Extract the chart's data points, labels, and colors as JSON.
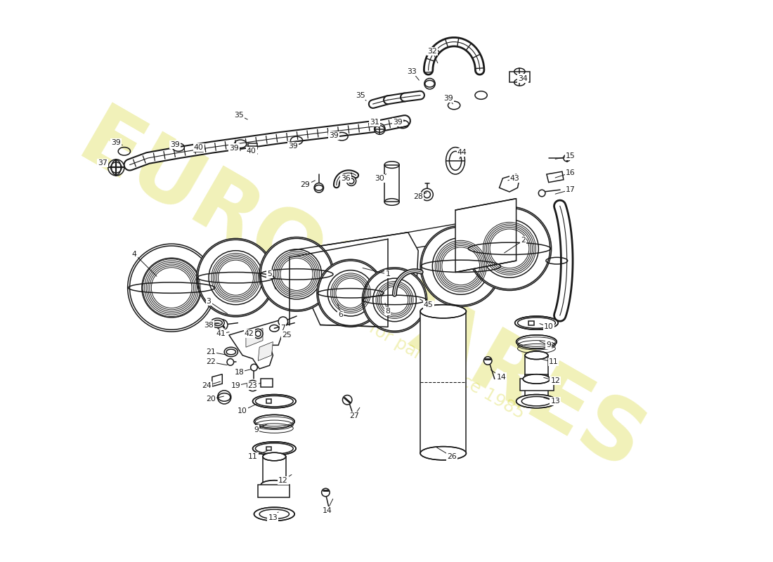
{
  "bg_color": "#ffffff",
  "dc": "#1a1a1a",
  "lw": 1.1,
  "watermark_text1": "EUROSPARES",
  "watermark_text2": "a passion for parts since 1985",
  "wc": "#cccc00",
  "wa": 0.28,
  "label_fs": 7.8,
  "annotations": [
    [
      "1",
      530,
      390,
      490,
      380
    ],
    [
      "2",
      730,
      340,
      700,
      360
    ],
    [
      "3",
      265,
      430,
      295,
      450
    ],
    [
      "4",
      155,
      360,
      190,
      395
    ],
    [
      "5",
      355,
      390,
      365,
      415
    ],
    [
      "6",
      460,
      450,
      455,
      430
    ],
    [
      "7",
      375,
      470,
      385,
      460
    ],
    [
      "8",
      530,
      445,
      525,
      430
    ],
    [
      "9",
      335,
      620,
      355,
      610
    ],
    [
      "10",
      315,
      592,
      340,
      580
    ],
    [
      "11",
      330,
      660,
      355,
      650
    ],
    [
      "12",
      375,
      695,
      390,
      685
    ],
    [
      "13",
      360,
      750,
      370,
      740
    ],
    [
      "14",
      440,
      740,
      450,
      720
    ],
    [
      "15",
      800,
      215,
      775,
      220
    ],
    [
      "16",
      800,
      240,
      775,
      248
    ],
    [
      "17",
      800,
      265,
      775,
      272
    ],
    [
      "18",
      310,
      535,
      330,
      530
    ],
    [
      "19",
      305,
      555,
      328,
      550
    ],
    [
      "20",
      268,
      575,
      290,
      570
    ],
    [
      "21",
      268,
      505,
      295,
      510
    ],
    [
      "22",
      268,
      520,
      295,
      525
    ],
    [
      "23",
      330,
      555,
      345,
      550
    ],
    [
      "24",
      262,
      555,
      285,
      548
    ],
    [
      "25",
      380,
      480,
      390,
      476
    ],
    [
      "26",
      625,
      660,
      600,
      645
    ],
    [
      "27",
      480,
      600,
      490,
      585
    ],
    [
      "28",
      575,
      275,
      590,
      268
    ],
    [
      "29",
      408,
      258,
      425,
      250
    ],
    [
      "30",
      518,
      248,
      530,
      240
    ],
    [
      "31",
      510,
      165,
      518,
      175
    ],
    [
      "32",
      596,
      60,
      605,
      80
    ],
    [
      "33",
      566,
      90,
      578,
      105
    ],
    [
      "34",
      730,
      100,
      720,
      105
    ],
    [
      "35",
      310,
      155,
      325,
      162
    ],
    [
      "35",
      490,
      125,
      500,
      135
    ],
    [
      "36",
      468,
      248,
      478,
      252
    ],
    [
      "37",
      108,
      225,
      120,
      230
    ],
    [
      "38",
      265,
      465,
      285,
      462
    ],
    [
      "39",
      128,
      195,
      140,
      200
    ],
    [
      "39",
      215,
      198,
      225,
      203
    ],
    [
      "39",
      302,
      203,
      315,
      208
    ],
    [
      "39",
      390,
      200,
      400,
      205
    ],
    [
      "39",
      450,
      185,
      460,
      192
    ],
    [
      "39",
      545,
      165,
      555,
      172
    ],
    [
      "39",
      620,
      130,
      628,
      140
    ],
    [
      "40",
      250,
      202,
      263,
      206
    ],
    [
      "40",
      328,
      208,
      340,
      213
    ],
    [
      "41",
      283,
      478,
      298,
      475
    ],
    [
      "42",
      325,
      478,
      340,
      473
    ],
    [
      "43",
      718,
      248,
      705,
      252
    ],
    [
      "44",
      640,
      210,
      635,
      222
    ],
    [
      "45",
      590,
      435,
      575,
      425
    ],
    [
      "9",
      768,
      495,
      752,
      488
    ],
    [
      "10",
      768,
      468,
      752,
      462
    ],
    [
      "11",
      775,
      520,
      755,
      515
    ],
    [
      "12",
      778,
      548,
      758,
      542
    ],
    [
      "13",
      778,
      578,
      758,
      572
    ],
    [
      "14",
      698,
      542,
      680,
      530
    ]
  ]
}
